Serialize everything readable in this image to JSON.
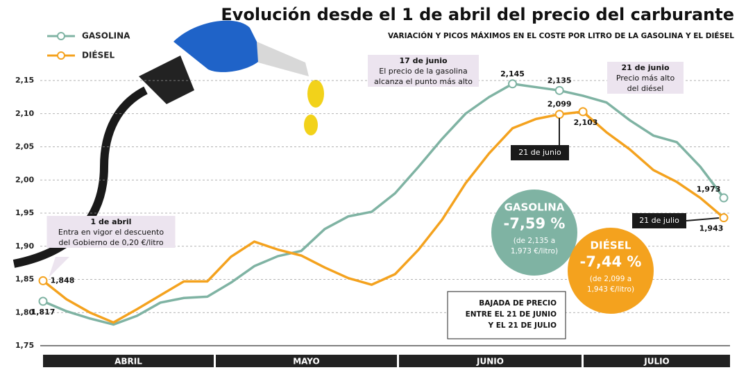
{
  "chart_data": {
    "type": "line",
    "title": "Evolución desde el 1 de abril del precio del carburante",
    "subtitle": "VARIACIÓN Y PICOS MÁXIMOS EN EL COSTE POR LITRO DE LA GASOLINA Y EL DIÉSEL",
    "months": [
      "ABRIL",
      "MAYO",
      "JUNIO",
      "JULIO"
    ],
    "ylim": [
      1.75,
      2.15
    ],
    "yticks": [
      {
        "value": 1.75,
        "label": "1,75"
      },
      {
        "value": 1.8,
        "label": "1,80"
      },
      {
        "value": 1.85,
        "label": "1,85"
      },
      {
        "value": 1.9,
        "label": "1,90"
      },
      {
        "value": 1.95,
        "label": "1,95"
      },
      {
        "value": 2.0,
        "label": "2,00"
      },
      {
        "value": 2.05,
        "label": "2,05"
      },
      {
        "value": 2.1,
        "label": "2,10"
      },
      {
        "value": 2.15,
        "label": "2,15"
      }
    ],
    "grid": true,
    "series": [
      {
        "name": "GASOLINA",
        "color": "#7fb3a3",
        "values": [
          1.817,
          1.802,
          1.791,
          1.782,
          1.795,
          1.815,
          1.822,
          1.824,
          1.845,
          1.87,
          1.885,
          1.893,
          1.926,
          1.945,
          1.952,
          1.98,
          2.02,
          2.062,
          2.1,
          2.125,
          2.145,
          2.14,
          2.135,
          2.127,
          2.117,
          2.09,
          2.067,
          2.057,
          2.02,
          1.973
        ],
        "value_labels": [
          "1,817",
          null,
          null,
          null,
          null,
          null,
          null,
          null,
          null,
          null,
          null,
          null,
          null,
          null,
          null,
          null,
          null,
          null,
          null,
          null,
          "2,145",
          null,
          "2,135",
          null,
          null,
          null,
          null,
          null,
          null,
          "1,973"
        ]
      },
      {
        "name": "DIÉSEL",
        "color": "#f4a21e",
        "values": [
          1.848,
          1.82,
          1.8,
          1.785,
          1.805,
          1.826,
          1.847,
          1.847,
          1.884,
          1.907,
          1.895,
          1.886,
          1.868,
          1.852,
          1.842,
          1.858,
          1.895,
          1.94,
          1.995,
          2.04,
          2.078,
          2.092,
          2.099,
          2.103,
          2.072,
          2.046,
          2.015,
          1.997,
          1.973,
          1.943
        ],
        "value_labels": [
          "1,848",
          null,
          null,
          null,
          null,
          null,
          null,
          null,
          null,
          null,
          null,
          null,
          null,
          null,
          null,
          null,
          null,
          null,
          null,
          null,
          null,
          null,
          "2,099",
          "2,103",
          null,
          null,
          null,
          null,
          null,
          "1,943"
        ]
      }
    ],
    "annotations": [
      {
        "title": "1 de abril",
        "lines": [
          "Entra en vigor el descuento",
          "del Gobierno de 0,20 €/litro"
        ]
      },
      {
        "title": "17 de junio",
        "lines": [
          "El precio de la gasolina",
          "alcanza el punto más alto"
        ]
      },
      {
        "title": "21 de junio",
        "lines": [
          "Precio más alto",
          "del diésel"
        ]
      }
    ],
    "date_tags": [
      "21 de junio",
      "21 de julio"
    ],
    "summaries": [
      {
        "name": "GASOLINA",
        "change": "-7,59 %",
        "lines": [
          "(de 2,135 a",
          "1,973 €/litro)"
        ]
      },
      {
        "name": "DIÉSEL",
        "change": "-7,44 %",
        "lines": [
          "(de 2,099 a",
          "1,943 €/litro)"
        ]
      }
    ],
    "note": [
      "BAJADA DE PRECIO",
      "ENTRE EL 21 DE JUNIO",
      "Y EL 21 DE JULIO"
    ]
  }
}
